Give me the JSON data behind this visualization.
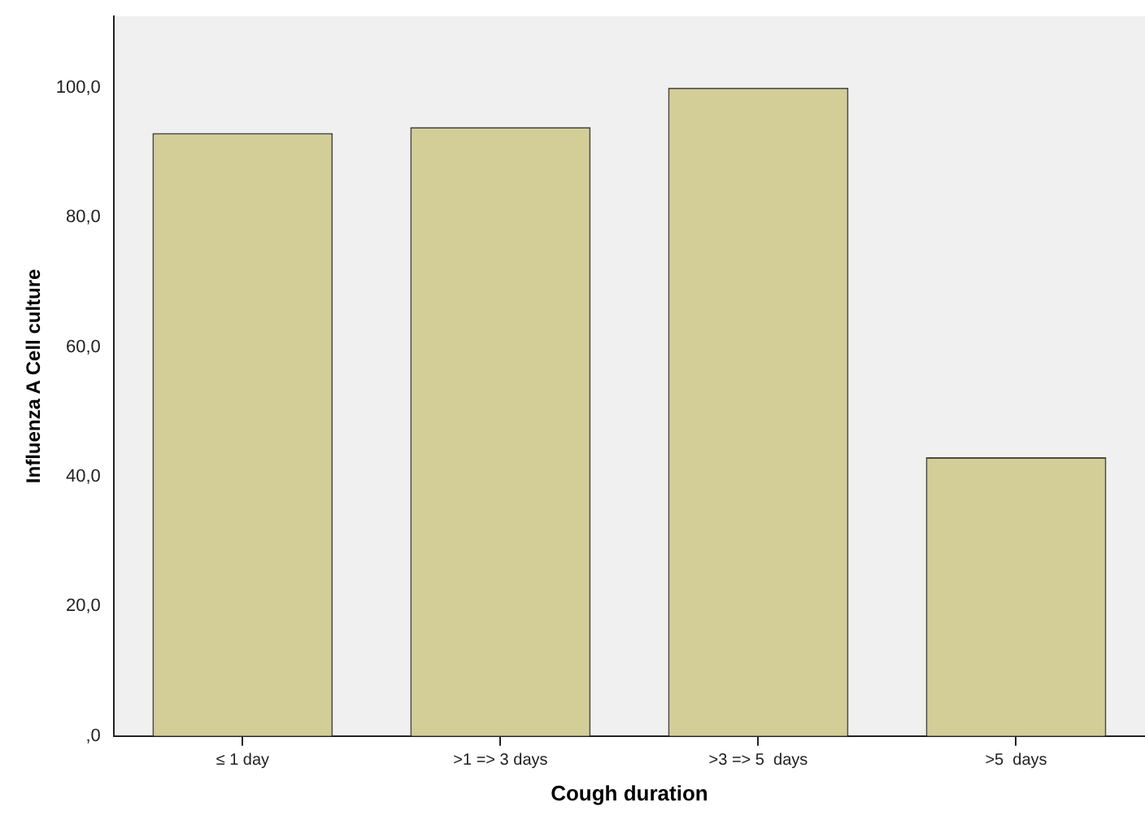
{
  "chart_data": {
    "type": "bar",
    "xlabel": "Cough duration",
    "ylabel": "Influenza A Cell culture",
    "categories": [
      "≤ 1 day",
      ">1 => 3 days",
      ">3 => 5  days",
      ">5  days"
    ],
    "values": [
      93.0,
      93.9,
      100.0,
      43.0
    ],
    "color": "#d3ce97",
    "ylim": [
      0,
      111
    ],
    "yticks": [
      {
        "value": 0,
        "label": ",0"
      },
      {
        "value": 20,
        "label": "20,0"
      },
      {
        "value": 40,
        "label": "40,0"
      },
      {
        "value": 60,
        "label": "60,0"
      },
      {
        "value": 80,
        "label": "80,0"
      },
      {
        "value": 100,
        "label": "100,0"
      }
    ],
    "grid": false,
    "legend": false
  }
}
